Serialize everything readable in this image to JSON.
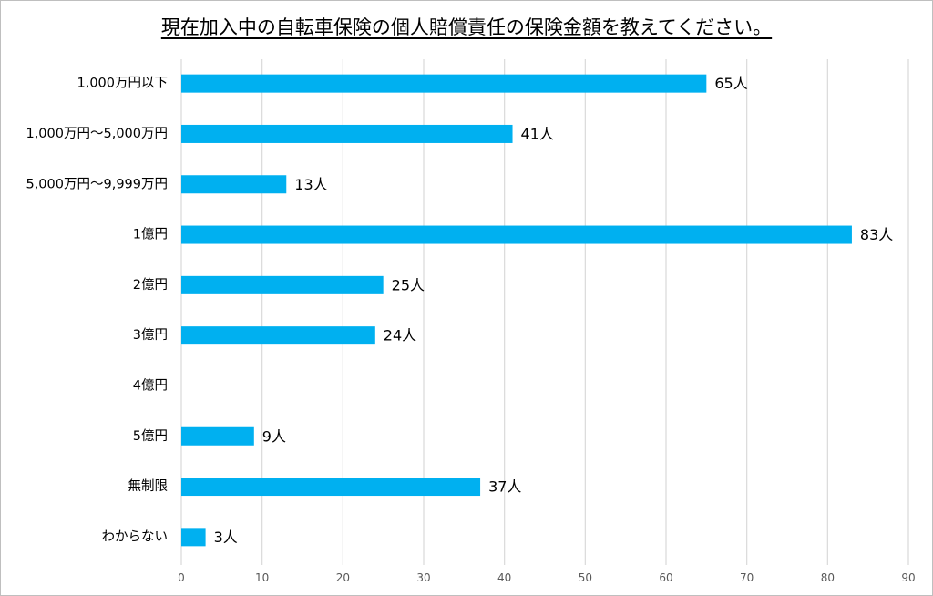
{
  "chart_data": {
    "type": "bar",
    "orientation": "horizontal",
    "title": "現在加入中の自転車保険の個人賠償責任の保険金額を教えてください。",
    "categories": [
      "1,000万円以下",
      "1,000万円～5,000万円",
      "5,000万円～9,999万円",
      "1億円",
      "2億円",
      "3億円",
      "4億円",
      "5億円",
      "無制限",
      "わからない"
    ],
    "values": [
      65,
      41,
      13,
      83,
      25,
      24,
      null,
      9,
      37,
      3
    ],
    "data_labels": [
      "65人",
      "41人",
      "13人",
      "83人",
      "25人",
      "24人",
      "",
      "9人",
      "37人",
      "3人"
    ],
    "xlim": [
      0,
      90
    ],
    "xticks": [
      "0",
      "10",
      "20",
      "30",
      "40",
      "50",
      "60",
      "70",
      "80",
      "90"
    ],
    "grid": true,
    "legend": "none",
    "bar_color": "#00b0f0"
  }
}
